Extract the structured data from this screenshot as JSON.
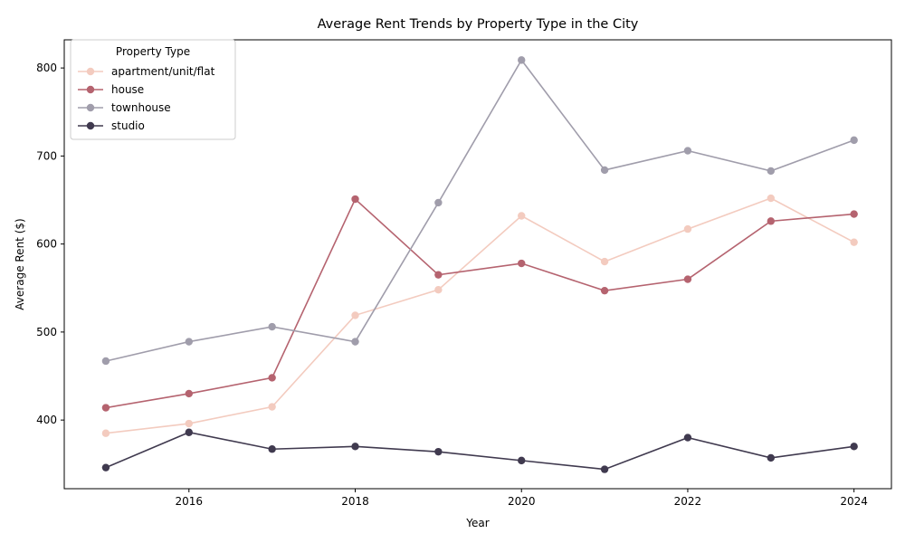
{
  "chart_data": {
    "type": "line",
    "title": "Average Rent Trends by Property Type in the City",
    "xlabel": "Year",
    "ylabel": "Average Rent ($)",
    "x": [
      2015,
      2016,
      2017,
      2018,
      2019,
      2020,
      2021,
      2022,
      2023,
      2024
    ],
    "xlim": [
      2014.5,
      2024.45
    ],
    "ylim": [
      322,
      832
    ],
    "xticks": [
      2016,
      2018,
      2020,
      2022,
      2024
    ],
    "yticks": [
      400,
      500,
      600,
      700,
      800
    ],
    "grid": false,
    "legend": {
      "title": "Property Type",
      "placement": "top-left"
    },
    "series": [
      {
        "name": "apartment/unit/flat",
        "color": "#f3cbbf",
        "values": [
          385,
          396,
          415,
          519,
          548,
          632,
          580,
          617,
          652,
          602
        ]
      },
      {
        "name": "house",
        "color": "#b5636f",
        "values": [
          414,
          430,
          448,
          651,
          565,
          578,
          547,
          560,
          626,
          634
        ]
      },
      {
        "name": "townhouse",
        "color": "#a09dab",
        "values": [
          467,
          489,
          506,
          489,
          647,
          809,
          684,
          706,
          683,
          718
        ]
      },
      {
        "name": "studio",
        "color": "#403a4f",
        "values": [
          346,
          386,
          367,
          370,
          364,
          354,
          344,
          380,
          357,
          370
        ]
      }
    ]
  }
}
